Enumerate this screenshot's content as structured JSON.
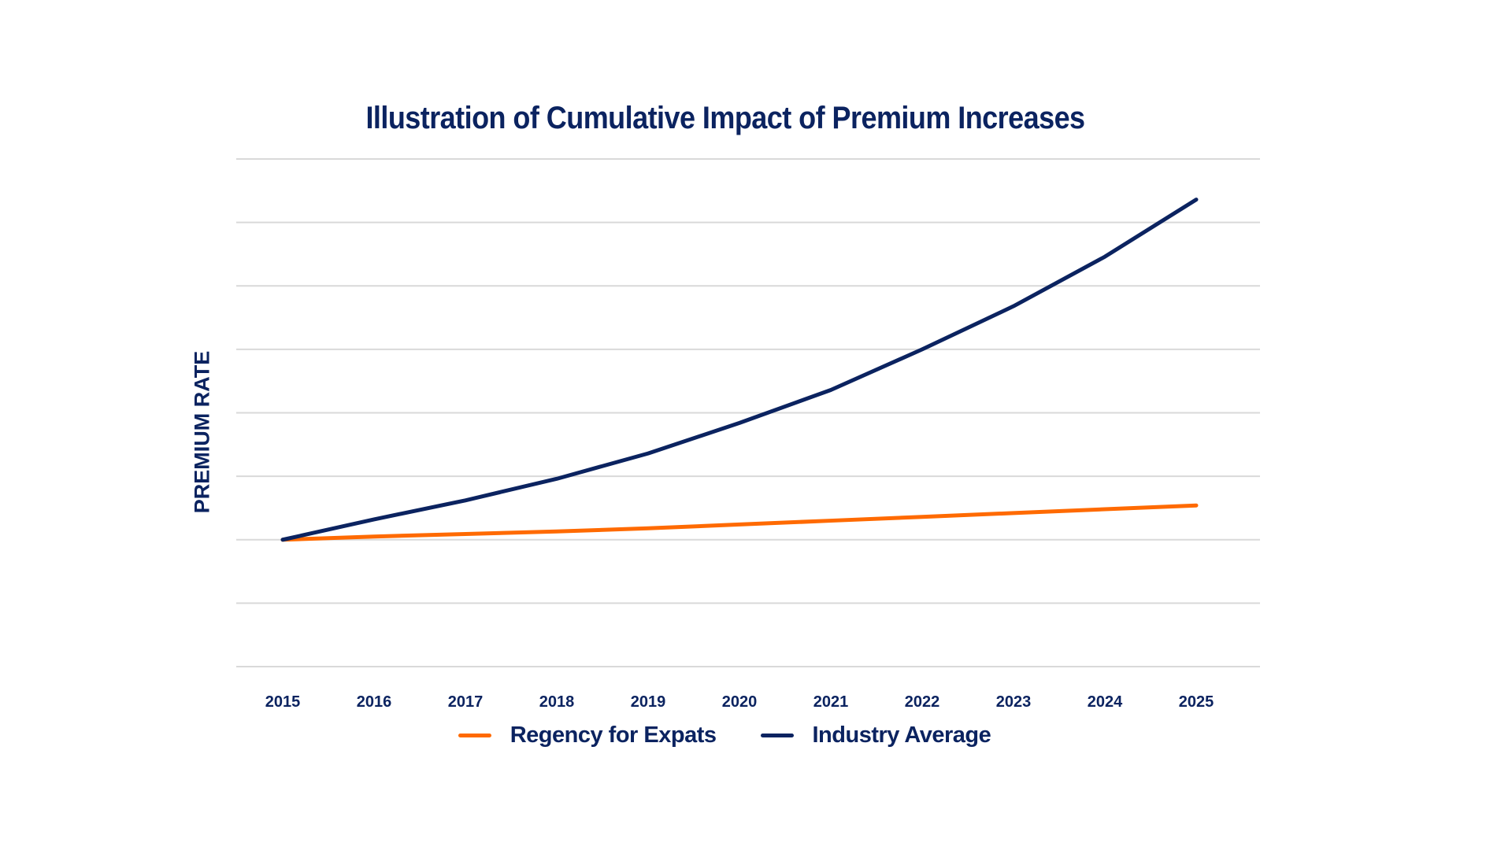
{
  "chart_data": {
    "type": "line",
    "title": "Illustration of Cumulative Impact of Premium Increases",
    "xlabel": "",
    "ylabel": "PREMIUM RATE",
    "x": [
      "2015",
      "2016",
      "2017",
      "2018",
      "2019",
      "2020",
      "2021",
      "2022",
      "2023",
      "2024",
      "2025"
    ],
    "ylim": [
      0,
      400
    ],
    "y_gridlines": [
      0,
      50,
      100,
      150,
      200,
      250,
      300,
      350,
      400
    ],
    "y_tick_labels_shown": false,
    "grid": true,
    "legend_position": "bottom",
    "series": [
      {
        "name": "Regency for Expats",
        "color": "#ff6a00",
        "values": [
          100,
          102.5,
          104.5,
          106.5,
          109,
          112,
          115,
          118,
          121,
          124,
          127
        ]
      },
      {
        "name": "Industry Average",
        "color": "#0b2360",
        "values": [
          100,
          116,
          131,
          148,
          168,
          192,
          218,
          250,
          284,
          323,
          368
        ]
      }
    ]
  }
}
